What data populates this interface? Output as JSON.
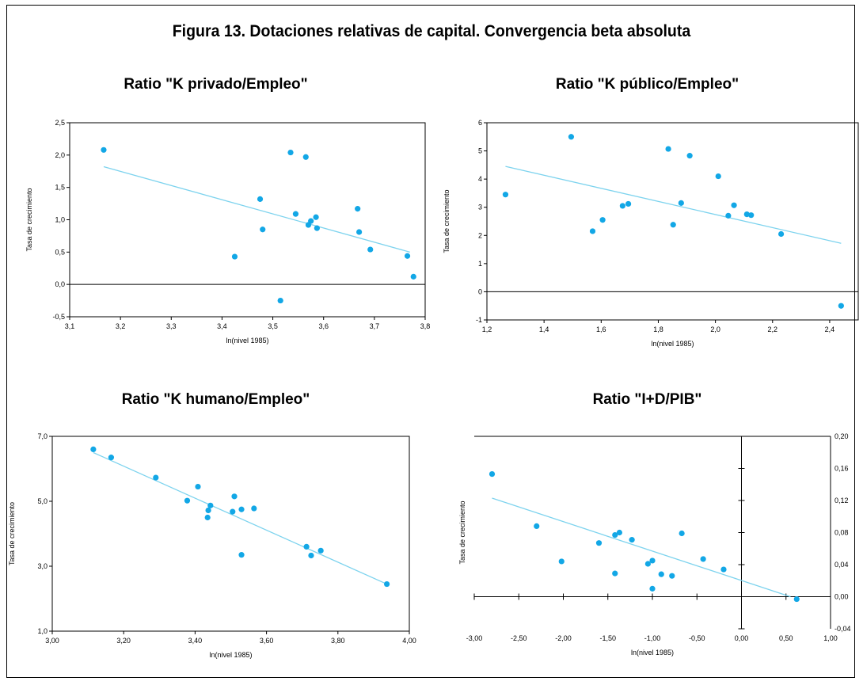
{
  "figure_title": "Figura 13. Dotaciones relativas de capital. Convergencia beta absoluta",
  "colors": {
    "points": "#12a7e6",
    "trend": "#7dd3ee",
    "axis": "#000000"
  },
  "chart_data": [
    {
      "type": "scatter",
      "title": "Ratio \"K privado/Empleo\"",
      "xlabel": "ln(nivel 1985)",
      "ylabel": "Tasa de crecimiento",
      "xlim": [
        3.1,
        3.8
      ],
      "ylim": [
        -0.5,
        2.5
      ],
      "xticks": [
        "3,1",
        "3,2",
        "3,3",
        "3,4",
        "3,5",
        "3,6",
        "3,7",
        "3,8"
      ],
      "yticks": [
        "-0,5",
        "0,0",
        "0,5",
        "1,0",
        "1,5",
        "2,0",
        "2,5"
      ],
      "points": [
        [
          3.167,
          2.08
        ],
        [
          3.425,
          0.43
        ],
        [
          3.475,
          1.32
        ],
        [
          3.48,
          0.85
        ],
        [
          3.515,
          -0.25
        ],
        [
          3.535,
          2.04
        ],
        [
          3.545,
          1.09
        ],
        [
          3.565,
          1.97
        ],
        [
          3.57,
          0.92
        ],
        [
          3.575,
          0.98
        ],
        [
          3.585,
          1.04
        ],
        [
          3.587,
          0.87
        ],
        [
          3.667,
          1.17
        ],
        [
          3.67,
          0.81
        ],
        [
          3.692,
          0.54
        ],
        [
          3.765,
          0.44
        ],
        [
          3.777,
          0.12
        ]
      ],
      "trend": [
        [
          3.167,
          1.82
        ],
        [
          3.77,
          0.5
        ]
      ]
    },
    {
      "type": "scatter",
      "title": "Ratio \"K público/Empleo\"",
      "xlabel": "ln(nivel 1985)",
      "ylabel": "Tasa de crecimiento",
      "xlim": [
        1.2,
        2.5
      ],
      "ylim": [
        -1,
        6
      ],
      "xticks": [
        "1,2",
        "1,4",
        "1,6",
        "1,8",
        "2,0",
        "2,2",
        "2,4"
      ],
      "yticks": [
        "-1",
        "0",
        "1",
        "2",
        "3",
        "4",
        "5",
        "6"
      ],
      "points": [
        [
          1.265,
          3.45
        ],
        [
          1.495,
          5.5
        ],
        [
          1.57,
          2.15
        ],
        [
          1.605,
          2.55
        ],
        [
          1.675,
          3.05
        ],
        [
          1.695,
          3.12
        ],
        [
          1.835,
          5.07
        ],
        [
          1.852,
          2.38
        ],
        [
          1.88,
          3.15
        ],
        [
          1.91,
          4.83
        ],
        [
          2.01,
          4.1
        ],
        [
          2.045,
          2.7
        ],
        [
          2.065,
          3.07
        ],
        [
          2.11,
          2.75
        ],
        [
          2.125,
          2.72
        ],
        [
          2.23,
          2.05
        ],
        [
          2.44,
          -0.5
        ]
      ],
      "trend": [
        [
          1.265,
          4.45
        ],
        [
          2.44,
          1.72
        ]
      ]
    },
    {
      "type": "scatter",
      "title": "Ratio \"K humano/Empleo\"",
      "xlabel": "ln(nivel 1985)",
      "ylabel": "Tasa de crecimiento",
      "xlim": [
        3.0,
        4.0
      ],
      "ylim": [
        1.0,
        7.0
      ],
      "xticks": [
        "3,00",
        "3,20",
        "3,40",
        "3,60",
        "3,80",
        "4,00"
      ],
      "yticks": [
        "1,0",
        "3,0",
        "5,0",
        "7,0"
      ],
      "points": [
        [
          3.115,
          6.6
        ],
        [
          3.165,
          6.35
        ],
        [
          3.29,
          5.73
        ],
        [
          3.378,
          5.02
        ],
        [
          3.408,
          5.45
        ],
        [
          3.435,
          4.5
        ],
        [
          3.437,
          4.72
        ],
        [
          3.443,
          4.87
        ],
        [
          3.505,
          4.68
        ],
        [
          3.51,
          5.15
        ],
        [
          3.53,
          4.75
        ],
        [
          3.53,
          3.35
        ],
        [
          3.565,
          4.78
        ],
        [
          3.712,
          3.6
        ],
        [
          3.725,
          3.33
        ],
        [
          3.752,
          3.48
        ],
        [
          3.937,
          2.45
        ]
      ],
      "trend": [
        [
          3.115,
          6.5
        ],
        [
          3.937,
          2.45
        ]
      ]
    },
    {
      "type": "scatter",
      "title": "Ratio \"I+D/PIB\"",
      "xlabel": "ln(nivel 1985)",
      "ylabel": "Tasa de crecimiento",
      "xlim": [
        -3.0,
        1.0
      ],
      "ylim": [
        -0.04,
        0.2
      ],
      "y_axis_side": "right",
      "xticks": [
        "-3,00",
        "-2,50",
        "-2,00",
        "-1,50",
        "-1,00",
        "-0,50",
        "0,00",
        "0,50",
        "1,00"
      ],
      "yticks": [
        "-0,04",
        "0,00",
        "0,04",
        "0,08",
        "0,12",
        "0,16",
        "0,20"
      ],
      "points": [
        [
          -2.8,
          0.153
        ],
        [
          -2.3,
          0.088
        ],
        [
          -2.02,
          0.044
        ],
        [
          -1.6,
          0.067
        ],
        [
          -1.42,
          0.077
        ],
        [
          -1.42,
          0.029
        ],
        [
          -1.37,
          0.08
        ],
        [
          -1.23,
          0.071
        ],
        [
          -1.05,
          0.041
        ],
        [
          -1.0,
          0.045
        ],
        [
          -1.0,
          0.01
        ],
        [
          -0.9,
          0.028
        ],
        [
          -0.78,
          0.026
        ],
        [
          -0.67,
          0.079
        ],
        [
          -0.43,
          0.047
        ],
        [
          -0.2,
          0.034
        ],
        [
          0.62,
          -0.003
        ]
      ],
      "trend": [
        [
          -2.8,
          0.123
        ],
        [
          0.55,
          0.0
        ]
      ]
    }
  ]
}
